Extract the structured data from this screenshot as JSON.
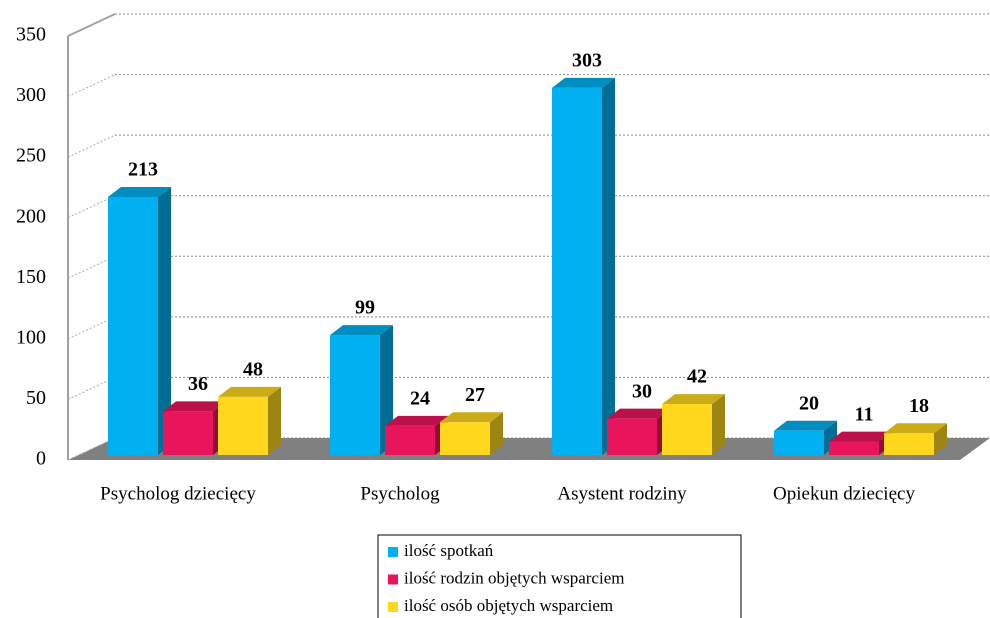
{
  "chart_data": {
    "type": "bar3d",
    "categories": [
      "Psycholog dziecięcy",
      "Psycholog",
      "Asystent rodziny",
      "Opiekun dziecięcy"
    ],
    "series": [
      {
        "name": "ilość spotkań",
        "color": "#00b0f0",
        "values": [
          213,
          99,
          303,
          20
        ]
      },
      {
        "name": "ilość rodzin objętych wsparciem",
        "color": "#e8155c",
        "values": [
          36,
          24,
          30,
          11
        ]
      },
      {
        "name": "ilość osób objętych wsparciem",
        "color": "#ffd71c",
        "values": [
          48,
          27,
          42,
          18
        ]
      }
    ],
    "ylim": [
      0,
      350
    ],
    "yticks": [
      0,
      50,
      100,
      150,
      200,
      250,
      300,
      350
    ],
    "grid": true
  }
}
